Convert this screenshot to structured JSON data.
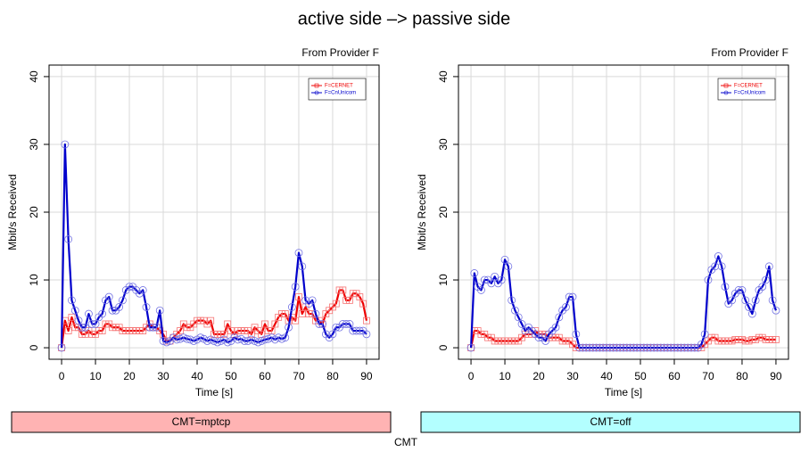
{
  "page": {
    "title": "active side –> passive side",
    "footer": "CMT"
  },
  "chart_data": [
    {
      "type": "line",
      "subtitle": "From Provider F",
      "xlabel": "Time [s]",
      "ylabel": "Mbit/s Received",
      "strip": "CMT=mptcp",
      "strip_color": "#ffb3b3",
      "xlim": [
        -3.7,
        93.7
      ],
      "ylim": [
        -1.7,
        41.7
      ],
      "xticks": [
        0,
        10,
        20,
        30,
        40,
        50,
        60,
        70,
        80,
        90
      ],
      "yticks": [
        0,
        10,
        20,
        30,
        40
      ],
      "grid": true,
      "legend": "top-right",
      "x": [
        0,
        1,
        2,
        3,
        4,
        5,
        6,
        7,
        8,
        9,
        10,
        11,
        12,
        13,
        14,
        15,
        16,
        17,
        18,
        19,
        20,
        21,
        22,
        23,
        24,
        25,
        26,
        27,
        28,
        29,
        30,
        31,
        32,
        33,
        34,
        35,
        36,
        37,
        38,
        39,
        40,
        41,
        42,
        43,
        44,
        45,
        46,
        47,
        48,
        49,
        50,
        51,
        52,
        53,
        54,
        55,
        56,
        57,
        58,
        59,
        60,
        61,
        62,
        63,
        64,
        65,
        66,
        67,
        68,
        69,
        70,
        71,
        72,
        73,
        74,
        75,
        76,
        77,
        78,
        79,
        80,
        81,
        82,
        83,
        84,
        85,
        86,
        87,
        88,
        89,
        90
      ],
      "series": [
        {
          "name": "F=CERNET",
          "color": "#ee0000",
          "marker": "square",
          "values": [
            0,
            4,
            2.5,
            4.5,
            3,
            3,
            2,
            2,
            2.5,
            2,
            2,
            2.5,
            2.5,
            3.5,
            3.5,
            3,
            3,
            3,
            2.5,
            2.5,
            2.5,
            2.5,
            2.5,
            2.5,
            2.5,
            3,
            3.5,
            3,
            3,
            2.5,
            2,
            1,
            1,
            1.5,
            2,
            2.5,
            3.5,
            3,
            3,
            3.5,
            4,
            4,
            4,
            3.5,
            4,
            2,
            2,
            2,
            2,
            3.5,
            2.5,
            2,
            2.5,
            2.5,
            2.5,
            2.5,
            2,
            3,
            2.5,
            2,
            3.5,
            2.5,
            2.5,
            3.5,
            4.5,
            5,
            5,
            4,
            4.5,
            4,
            7.5,
            5,
            6,
            5,
            5,
            4,
            4,
            3.5,
            5,
            5.5,
            6,
            6.5,
            8.5,
            8.5,
            7,
            7,
            8,
            8,
            7.5,
            6.5,
            4
          ]
        },
        {
          "name": "F=CnUnicom",
          "color": "#0000cc",
          "marker": "circle",
          "values": [
            0,
            30,
            16,
            7,
            5.5,
            4,
            3,
            3,
            5,
            3.5,
            3.5,
            4.5,
            5,
            7,
            7.5,
            5.5,
            5.5,
            6,
            7,
            8.5,
            9,
            9,
            8.5,
            8,
            8.5,
            6,
            3,
            3,
            3,
            5.5,
            1,
            0.8,
            1,
            1.5,
            1.2,
            1.3,
            1.5,
            1.3,
            1.2,
            1,
            1.2,
            1.5,
            1.3,
            1,
            1.2,
            1,
            0.8,
            1,
            1.2,
            0.8,
            1,
            1.5,
            1.2,
            1.3,
            1,
            1,
            1.2,
            1,
            0.8,
            1,
            1.2,
            1.3,
            1.5,
            1.2,
            1.5,
            1.3,
            1.5,
            3,
            6,
            9,
            14,
            12,
            7,
            6.5,
            7,
            5,
            3.5,
            3.5,
            2,
            1.5,
            2,
            3,
            3,
            3.5,
            3.5,
            3.5,
            2.5,
            2.5,
            2.5,
            2.5,
            2
          ]
        }
      ]
    },
    {
      "type": "line",
      "subtitle": "From Provider F",
      "xlabel": "Time [s]",
      "ylabel": "Mbit/s Received",
      "strip": "CMT=off",
      "strip_color": "#b3ffff",
      "xlim": [
        -3.7,
        93.7
      ],
      "ylim": [
        -1.7,
        41.7
      ],
      "xticks": [
        0,
        10,
        20,
        30,
        40,
        50,
        60,
        70,
        80,
        90
      ],
      "yticks": [
        0,
        10,
        20,
        30,
        40
      ],
      "grid": true,
      "legend": "top-right",
      "x": [
        0,
        1,
        2,
        3,
        4,
        5,
        6,
        7,
        8,
        9,
        10,
        11,
        12,
        13,
        14,
        15,
        16,
        17,
        18,
        19,
        20,
        21,
        22,
        23,
        24,
        25,
        26,
        27,
        28,
        29,
        30,
        31,
        32,
        33,
        34,
        35,
        36,
        37,
        38,
        39,
        40,
        41,
        42,
        43,
        44,
        45,
        46,
        47,
        48,
        49,
        50,
        51,
        52,
        53,
        54,
        55,
        56,
        57,
        58,
        59,
        60,
        61,
        62,
        63,
        64,
        65,
        66,
        67,
        68,
        69,
        70,
        71,
        72,
        73,
        74,
        75,
        76,
        77,
        78,
        79,
        80,
        81,
        82,
        83,
        84,
        85,
        86,
        87,
        88,
        89,
        90
      ],
      "series": [
        {
          "name": "F=CERNET",
          "color": "#ee0000",
          "marker": "square",
          "values": [
            0,
            2.5,
            2.5,
            2,
            2,
            1.5,
            1.5,
            1,
            1,
            1,
            1,
            1,
            1,
            1,
            1,
            1.5,
            2,
            2,
            2,
            2.5,
            2,
            2,
            2,
            1.5,
            1.5,
            1.5,
            1.5,
            1,
            1,
            1,
            0.5,
            0,
            0,
            0,
            0,
            0,
            0,
            0,
            0,
            0,
            0,
            0,
            0,
            0,
            0,
            0,
            0,
            0,
            0,
            0,
            0,
            0,
            0,
            0,
            0,
            0,
            0,
            0,
            0,
            0,
            0,
            0,
            0,
            0,
            0,
            0,
            0,
            0,
            0,
            0.5,
            1,
            1.5,
            1.5,
            1,
            1,
            1,
            1,
            1,
            1.2,
            1.2,
            1.2,
            1,
            1,
            1.2,
            1.2,
            1.5,
            1.5,
            1.2,
            1.2,
            1.2,
            1.2
          ]
        },
        {
          "name": "F=CnUnicom",
          "color": "#0000cc",
          "marker": "circle",
          "values": [
            0,
            11,
            9,
            8.5,
            10,
            10,
            9.5,
            10.5,
            9.5,
            10,
            13,
            12,
            7,
            5.5,
            4.5,
            3.5,
            2.5,
            3,
            2.5,
            2,
            1.5,
            1.5,
            1,
            2,
            2.5,
            3,
            4.5,
            5.5,
            6,
            7.5,
            7.5,
            2,
            0,
            0,
            0,
            0,
            0,
            0,
            0,
            0,
            0,
            0,
            0,
            0,
            0,
            0,
            0,
            0,
            0,
            0,
            0,
            0,
            0,
            0,
            0,
            0,
            0,
            0,
            0,
            0,
            0,
            0,
            0,
            0,
            0,
            0,
            0,
            0,
            0.5,
            2,
            10,
            11.5,
            12,
            13.5,
            12,
            9,
            6.5,
            7,
            8,
            8.5,
            8.5,
            7,
            6,
            5,
            7,
            8.5,
            9,
            10,
            12,
            7,
            5.5
          ]
        }
      ]
    }
  ]
}
